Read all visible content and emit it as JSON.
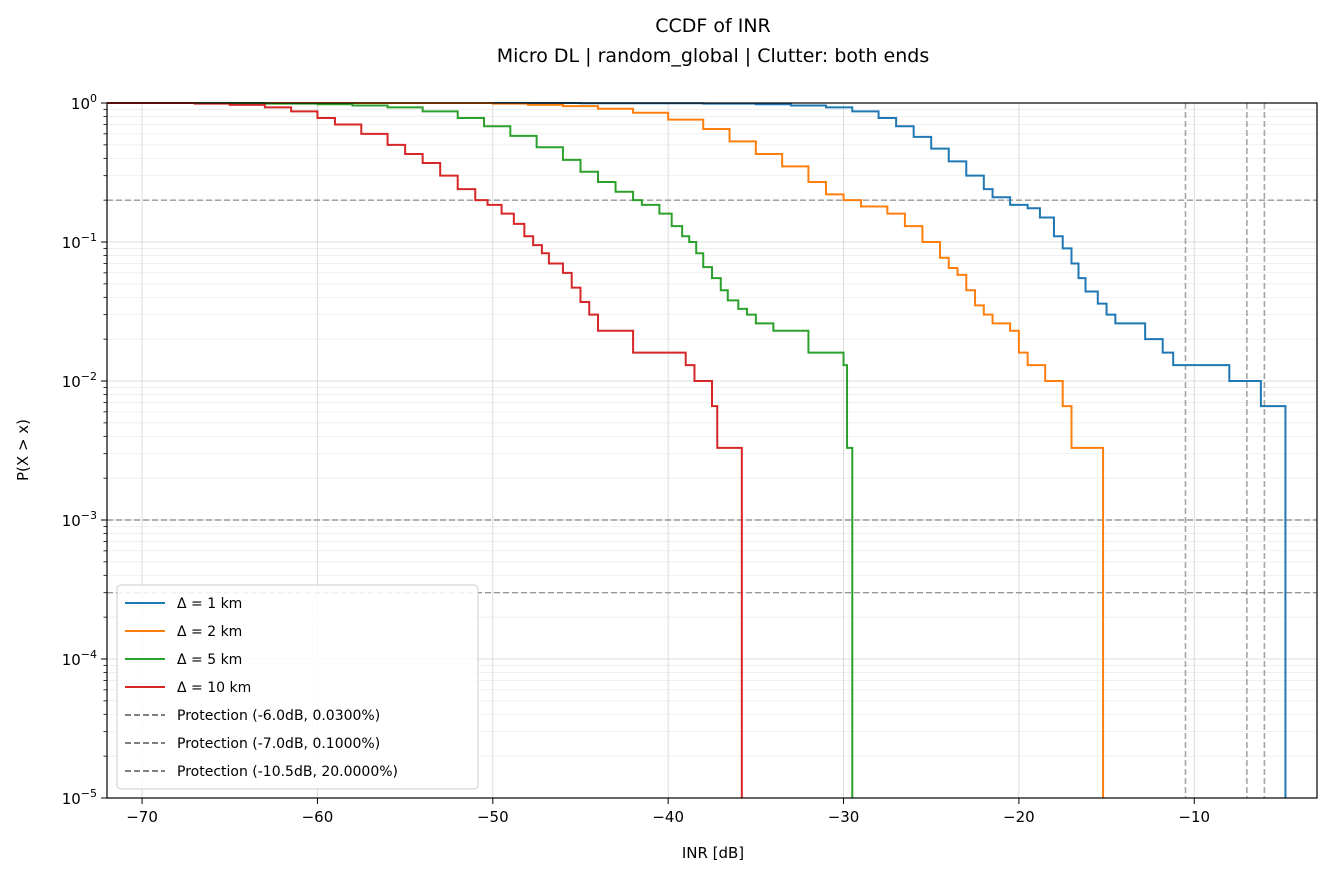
{
  "chart_data": {
    "type": "line",
    "title": "CCDF of INR",
    "subtitle": "Micro DL | random_global | Clutter: both ends",
    "xlabel": "INR [dB]",
    "ylabel": "P(X > x)",
    "xlim": [
      -72,
      -3
    ],
    "ylim": [
      1e-05,
      1
    ],
    "y_scale": "log",
    "grid": true,
    "legend_position": "lower-left",
    "x_ticks": [
      {
        "value": -70,
        "label": "−70"
      },
      {
        "value": -60,
        "label": "−60"
      },
      {
        "value": -50,
        "label": "−50"
      },
      {
        "value": -40,
        "label": "−40"
      },
      {
        "value": -30,
        "label": "−30"
      },
      {
        "value": -20,
        "label": "−20"
      },
      {
        "value": -10,
        "label": "−10"
      }
    ],
    "y_ticks": [
      {
        "value": 1,
        "base": "10",
        "exp": "0"
      },
      {
        "value": 0.1,
        "base": "10",
        "exp": "−1"
      },
      {
        "value": 0.01,
        "base": "10",
        "exp": "−2"
      },
      {
        "value": 0.001,
        "base": "10",
        "exp": "−3"
      },
      {
        "value": 0.0001,
        "base": "10",
        "exp": "−4"
      },
      {
        "value": 1e-05,
        "base": "10",
        "exp": "−5"
      }
    ],
    "series": [
      {
        "name": "Δ = 1 km",
        "color": "#1f77b4",
        "points": [
          [
            -59,
            1.0
          ],
          [
            -45,
            0.995
          ],
          [
            -38,
            0.99
          ],
          [
            -35,
            0.98
          ],
          [
            -33,
            0.96
          ],
          [
            -31,
            0.93
          ],
          [
            -29.5,
            0.87
          ],
          [
            -28,
            0.78
          ],
          [
            -27,
            0.68
          ],
          [
            -26,
            0.57
          ],
          [
            -25,
            0.47
          ],
          [
            -24,
            0.38
          ],
          [
            -23,
            0.3
          ],
          [
            -22,
            0.24
          ],
          [
            -21.5,
            0.21
          ],
          [
            -20.5,
            0.185
          ],
          [
            -19.5,
            0.175
          ],
          [
            -18.8,
            0.15
          ],
          [
            -18,
            0.11
          ],
          [
            -17.5,
            0.09
          ],
          [
            -17,
            0.07
          ],
          [
            -16.6,
            0.055
          ],
          [
            -16.2,
            0.044
          ],
          [
            -15.5,
            0.036
          ],
          [
            -15,
            0.03
          ],
          [
            -14.5,
            0.026
          ],
          [
            -13.2,
            0.026
          ],
          [
            -12.8,
            0.02
          ],
          [
            -11.8,
            0.016
          ],
          [
            -11.2,
            0.013
          ],
          [
            -8.5,
            0.013
          ],
          [
            -8,
            0.01
          ],
          [
            -6.5,
            0.01
          ],
          [
            -6.2,
            0.0066
          ],
          [
            -4.8,
            0.0066
          ],
          [
            -4.8,
            1e-05
          ]
        ]
      },
      {
        "name": "Δ = 2 km",
        "color": "#ff7f0e",
        "points": [
          [
            -56.5,
            1.0
          ],
          [
            -50,
            0.99
          ],
          [
            -48,
            0.97
          ],
          [
            -46,
            0.95
          ],
          [
            -44,
            0.91
          ],
          [
            -42,
            0.85
          ],
          [
            -40,
            0.76
          ],
          [
            -38,
            0.65
          ],
          [
            -36.5,
            0.53
          ],
          [
            -35,
            0.43
          ],
          [
            -33.5,
            0.35
          ],
          [
            -32,
            0.27
          ],
          [
            -31,
            0.22
          ],
          [
            -30,
            0.2
          ],
          [
            -29,
            0.18
          ],
          [
            -27.5,
            0.16
          ],
          [
            -26.5,
            0.13
          ],
          [
            -25.5,
            0.1
          ],
          [
            -24.5,
            0.077
          ],
          [
            -24,
            0.065
          ],
          [
            -23.5,
            0.058
          ],
          [
            -23,
            0.045
          ],
          [
            -22.5,
            0.035
          ],
          [
            -22,
            0.03
          ],
          [
            -21.5,
            0.026
          ],
          [
            -20.5,
            0.023
          ],
          [
            -20,
            0.016
          ],
          [
            -19.5,
            0.013
          ],
          [
            -18.5,
            0.01
          ],
          [
            -17.5,
            0.0066
          ],
          [
            -17,
            0.0033
          ],
          [
            -15.2,
            0.0033
          ],
          [
            -15.2,
            1e-05
          ]
        ]
      },
      {
        "name": "Δ = 5 km",
        "color": "#2ca02c",
        "points": [
          [
            -68,
            1.0
          ],
          [
            -63,
            0.99
          ],
          [
            -60,
            0.98
          ],
          [
            -58,
            0.96
          ],
          [
            -56,
            0.93
          ],
          [
            -54,
            0.87
          ],
          [
            -52,
            0.78
          ],
          [
            -50.5,
            0.68
          ],
          [
            -49,
            0.58
          ],
          [
            -47.5,
            0.48
          ],
          [
            -46,
            0.39
          ],
          [
            -45,
            0.32
          ],
          [
            -44,
            0.27
          ],
          [
            -43,
            0.23
          ],
          [
            -42,
            0.2
          ],
          [
            -41.5,
            0.185
          ],
          [
            -40.5,
            0.16
          ],
          [
            -39.8,
            0.13
          ],
          [
            -39.2,
            0.11
          ],
          [
            -38.8,
            0.1
          ],
          [
            -38.4,
            0.083
          ],
          [
            -38,
            0.066
          ],
          [
            -37.5,
            0.055
          ],
          [
            -37,
            0.045
          ],
          [
            -36.6,
            0.038
          ],
          [
            -36,
            0.033
          ],
          [
            -35.5,
            0.03
          ],
          [
            -35,
            0.026
          ],
          [
            -34,
            0.023
          ],
          [
            -32.5,
            0.023
          ],
          [
            -32,
            0.016
          ],
          [
            -30.5,
            0.016
          ],
          [
            -30,
            0.013
          ],
          [
            -29.8,
            0.0033
          ],
          [
            -29.5,
            0.0033
          ],
          [
            -29.5,
            1e-05
          ]
        ]
      },
      {
        "name": "Δ = 10 km",
        "color": "#d62728",
        "points": [
          [
            -71,
            1.0
          ],
          [
            -67,
            0.99
          ],
          [
            -65,
            0.97
          ],
          [
            -63,
            0.93
          ],
          [
            -61.5,
            0.87
          ],
          [
            -60,
            0.78
          ],
          [
            -59,
            0.7
          ],
          [
            -57.5,
            0.6
          ],
          [
            -56,
            0.5
          ],
          [
            -55,
            0.43
          ],
          [
            -54,
            0.37
          ],
          [
            -53,
            0.3
          ],
          [
            -52,
            0.24
          ],
          [
            -51,
            0.2
          ],
          [
            -50.3,
            0.185
          ],
          [
            -49.5,
            0.16
          ],
          [
            -48.8,
            0.135
          ],
          [
            -48.2,
            0.11
          ],
          [
            -47.7,
            0.095
          ],
          [
            -47.2,
            0.083
          ],
          [
            -46.8,
            0.07
          ],
          [
            -46,
            0.06
          ],
          [
            -45.5,
            0.047
          ],
          [
            -45,
            0.037
          ],
          [
            -44.5,
            0.03
          ],
          [
            -44,
            0.023
          ],
          [
            -42.3,
            0.023
          ],
          [
            -42,
            0.016
          ],
          [
            -39.5,
            0.016
          ],
          [
            -39,
            0.013
          ],
          [
            -38.5,
            0.01
          ],
          [
            -37.6,
            0.01
          ],
          [
            -37.5,
            0.0066
          ],
          [
            -37.2,
            0.0033
          ],
          [
            -35.8,
            0.0033
          ],
          [
            -35.8,
            1e-05
          ]
        ]
      }
    ],
    "reference_lines": [
      {
        "name": "Protection (-6.0dB, 0.0300%)",
        "x": -6.0,
        "y": 0.0003
      },
      {
        "name": "Protection (-7.0dB, 0.1000%)",
        "x": -7.0,
        "y": 0.001
      },
      {
        "name": "Protection (-10.5dB, 20.0000%)",
        "x": -10.5,
        "y": 0.2
      }
    ],
    "reference_color": "#7f7f7f"
  }
}
